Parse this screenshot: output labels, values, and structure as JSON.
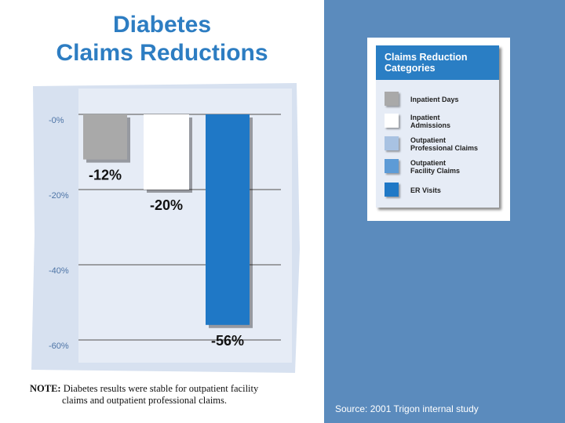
{
  "title": {
    "line1": "Diabetes",
    "line2": "Claims Reductions"
  },
  "chart_data": {
    "type": "bar",
    "categories": [
      "Inpatient Days",
      "Inpatient Admissions",
      "ER Visits"
    ],
    "values": [
      -12,
      -20,
      -56
    ],
    "value_labels": [
      "-12%",
      "-20%",
      "-56%"
    ],
    "colors": [
      "#a9a9a9",
      "#ffffff",
      "#1f78c6"
    ],
    "yticks": [
      0,
      -20,
      -40,
      -60
    ],
    "ytick_labels": [
      "-0%",
      "-20%",
      "-40%",
      "-60%"
    ],
    "ylim": [
      -60,
      0
    ],
    "grid": true
  },
  "note": {
    "label": "NOTE:",
    "text1": "Diabetes results were stable for outpatient facility",
    "text2": "claims and outpatient professional claims."
  },
  "legend": {
    "title_line1": "Claims Reduction",
    "title_line2": "Categories",
    "items": [
      {
        "line1": "Inpatient Days",
        "line2": "",
        "color": "#a9a9a9"
      },
      {
        "line1": "Inpatient",
        "line2": "Admissions",
        "color": "#ffffff"
      },
      {
        "line1": "Outpatient",
        "line2": "Professional Claims",
        "color": "#a8c2e2"
      },
      {
        "line1": "Outpatient",
        "line2": "Facility Claims",
        "color": "#5d9bd6"
      },
      {
        "line1": "ER Visits",
        "line2": "",
        "color": "#1f78c6"
      }
    ]
  },
  "source": "Source:  2001 Trigon internal study"
}
